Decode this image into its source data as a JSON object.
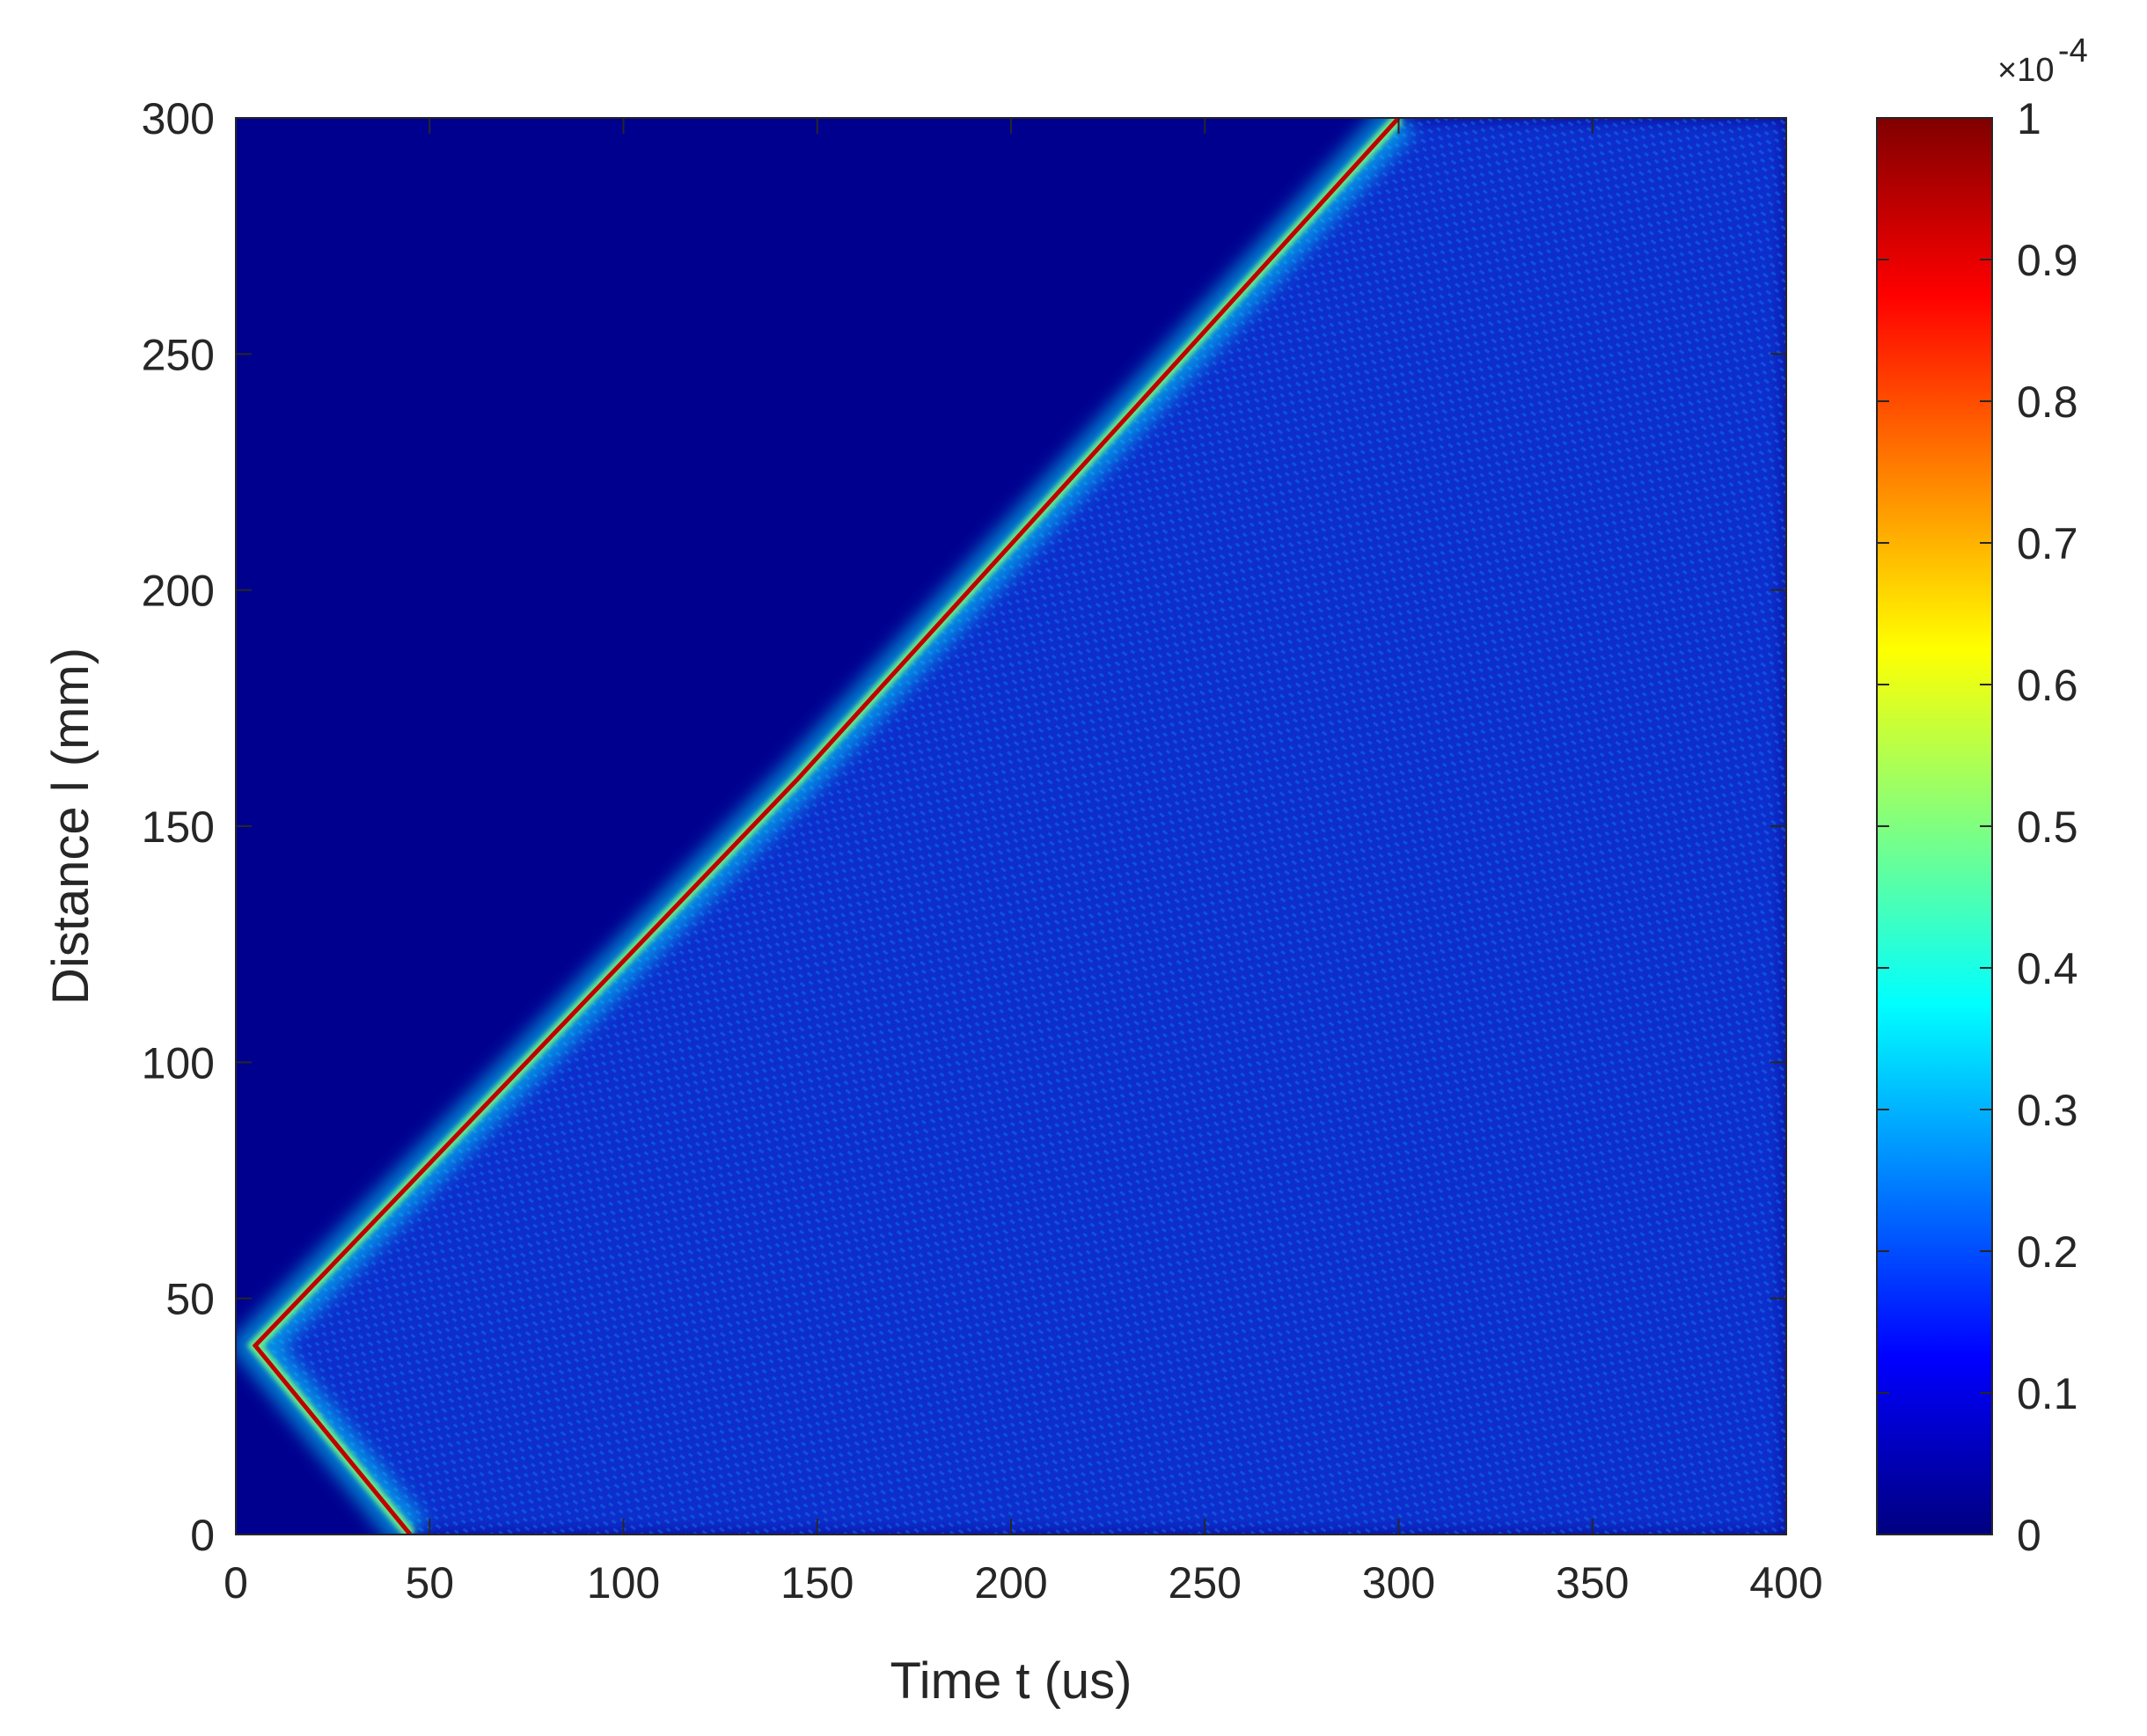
{
  "chart_data": {
    "type": "heatmap",
    "title": "",
    "xlabel": "Time t (us)",
    "ylabel": "Distance l (mm)",
    "xlim": [
      0,
      400
    ],
    "ylim": [
      0,
      300
    ],
    "x_ticks": [
      0,
      50,
      100,
      150,
      200,
      250,
      300,
      350,
      400
    ],
    "y_ticks": [
      0,
      50,
      100,
      150,
      200,
      250,
      300
    ],
    "x_tick_labels": [
      "0",
      "50",
      "100",
      "150",
      "200",
      "250",
      "300",
      "350",
      "400"
    ],
    "y_tick_labels": [
      "0",
      "50",
      "100",
      "150",
      "200",
      "250",
      "300"
    ],
    "colorbar": {
      "min": 0,
      "max": 1,
      "ticks": [
        0,
        0.1,
        0.2,
        0.3,
        0.4,
        0.5,
        0.6,
        0.7,
        0.8,
        0.9,
        1
      ],
      "tick_labels": [
        "0",
        "0.1",
        "0.2",
        "0.3",
        "0.4",
        "0.5",
        "0.6",
        "0.7",
        "0.8",
        "0.9",
        "1"
      ],
      "multiplier_base": "×10",
      "multiplier_exponent": "-4",
      "colormap": "jet",
      "colormap_stops": [
        "#000080",
        "#0000ff",
        "#0080ff",
        "#00ffff",
        "#80ff80",
        "#ffff00",
        "#ff8000",
        "#ff0000",
        "#800000"
      ]
    },
    "features": {
      "source_point": {
        "t": 5,
        "l": 40
      },
      "upward_front": [
        [
          5,
          40
        ],
        [
          75,
          100
        ],
        [
          145,
          160
        ],
        [
          300,
          300
        ]
      ],
      "downward_front": [
        [
          5,
          40
        ],
        [
          45,
          0
        ]
      ],
      "front_peak_value": 1,
      "background_value": 0
    }
  }
}
